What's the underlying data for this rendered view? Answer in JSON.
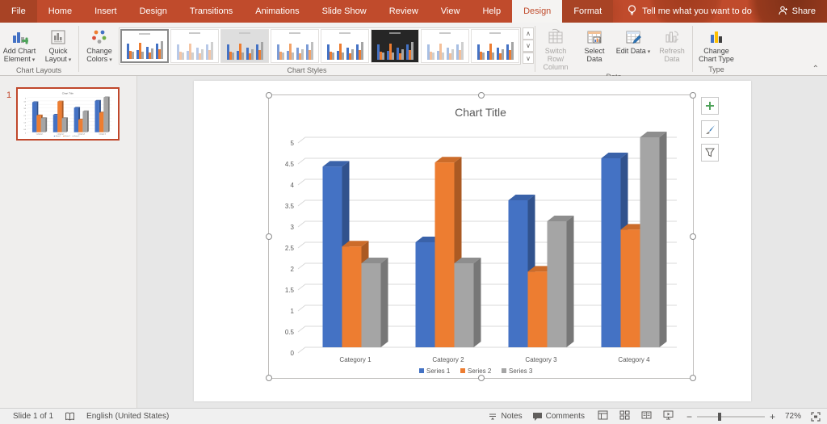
{
  "colors": {
    "app_red": "#C04B2C",
    "app_red_dark": "#A84325",
    "selection_red": "#C0472B",
    "series_blue": "#4472C4",
    "series_orange": "#ED7D31",
    "series_gray": "#A5A5A5"
  },
  "titlebar": {
    "tabs": [
      "File",
      "Home",
      "Insert",
      "Design",
      "Transitions",
      "Animations",
      "Slide Show",
      "Review",
      "View",
      "Help"
    ],
    "contextual_tabs": [
      {
        "label": "Design",
        "active": true
      },
      {
        "label": "Format",
        "active": false
      }
    ],
    "tell_me": "Tell me what you want to do",
    "share_label": "Share"
  },
  "ribbon": {
    "chart_layouts": {
      "group_label": "Chart Layouts",
      "add_chart_element": "Add Chart Element",
      "quick_layout": "Quick Layout"
    },
    "chart_styles": {
      "group_label": "Chart Styles",
      "change_colors": "Change Colors",
      "styles": [
        {
          "name": "Style 1",
          "bg": "#FFFFFF",
          "selected": true,
          "colors": [
            "#4472C4",
            "#ED7D31",
            "#A5A5A5"
          ]
        },
        {
          "name": "Style 2",
          "bg": "#FFFFFF",
          "selected": false,
          "colors": [
            "#B8C9E8",
            "#F5C6A5",
            "#D0D0D0"
          ]
        },
        {
          "name": "Style 3",
          "bg": "#DEDEDE",
          "selected": false,
          "colors": [
            "#4472C4",
            "#ED7D31",
            "#A5A5A5"
          ]
        },
        {
          "name": "Style 4",
          "bg": "#FFFFFF",
          "selected": false,
          "colors": [
            "#7C9CD6",
            "#F2A369",
            "#BFBFBF"
          ]
        },
        {
          "name": "Style 5",
          "bg": "#FFFFFF",
          "selected": false,
          "colors": [
            "#4472C4",
            "#ED7D31",
            "#A5A5A5"
          ]
        },
        {
          "name": "Style 6",
          "bg": "#262626",
          "selected": false,
          "colors": [
            "#4472C4",
            "#ED7D31",
            "#A5A5A5"
          ]
        },
        {
          "name": "Style 7",
          "bg": "#FFFFFF",
          "selected": false,
          "colors": [
            "#A8BFE3",
            "#F4C09A",
            "#CFCFCF"
          ]
        },
        {
          "name": "Style 8",
          "bg": "#FFFFFF",
          "selected": false,
          "colors": [
            "#4472C4",
            "#ED7D31",
            "#A5A5A5"
          ]
        }
      ]
    },
    "data_group": {
      "group_label": "Data",
      "switch_row_column": "Switch Row/ Column",
      "select_data": "Select Data",
      "edit_data": "Edit Data",
      "refresh_data": "Refresh Data"
    },
    "type_group": {
      "group_label": "Type",
      "change_chart_type": "Change Chart Type"
    }
  },
  "slide_panel": {
    "slide_number": "1"
  },
  "chart_data": {
    "type": "bar",
    "subtype": "3d-clustered-column",
    "title": "Chart Title",
    "categories": [
      "Category 1",
      "Category 2",
      "Category 3",
      "Category 4"
    ],
    "series": [
      {
        "name": "Series 1",
        "color": "#4472C4",
        "values": [
          4.3,
          2.5,
          3.5,
          4.5
        ]
      },
      {
        "name": "Series 2",
        "color": "#ED7D31",
        "values": [
          2.4,
          4.4,
          1.8,
          2.8
        ]
      },
      {
        "name": "Series 3",
        "color": "#A5A5A5",
        "values": [
          2.0,
          2.0,
          3.0,
          5.0
        ]
      }
    ],
    "ylim": [
      0,
      5
    ],
    "ytick_step": 0.5,
    "grid": true,
    "legend_position": "bottom"
  },
  "status_bar": {
    "slide_counter": "Slide 1 of 1",
    "language": "English (United States)",
    "notes_label": "Notes",
    "comments_label": "Comments",
    "zoom_level": "72%",
    "view_icons": [
      "normal-view-icon",
      "slide-sorter-icon",
      "reading-view-icon",
      "slideshow-icon"
    ]
  }
}
